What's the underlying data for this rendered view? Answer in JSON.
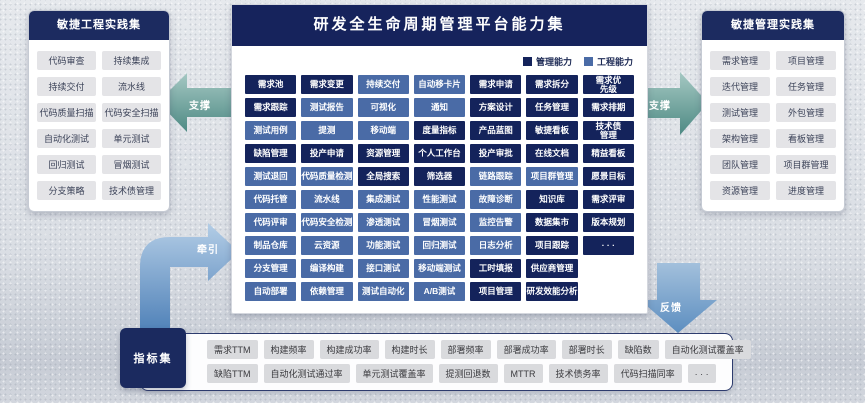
{
  "center": {
    "title": "研发全生命周期管理平台能力集",
    "legend": [
      {
        "label": "管理能力",
        "color": "#14235b"
      },
      {
        "label": "工程能力",
        "color": "#4a6ba6"
      }
    ],
    "rows": [
      [
        {
          "t": "需求池",
          "k": "m"
        },
        {
          "t": "需求变更",
          "k": "m"
        },
        {
          "t": "持续交付",
          "k": "e"
        },
        {
          "t": "自动移卡片",
          "k": "e"
        },
        {
          "t": "需求申请",
          "k": "m"
        },
        {
          "t": "需求拆分",
          "k": "m"
        },
        {
          "t": "需求优先级",
          "k": "m",
          "wrap": true
        }
      ],
      [
        {
          "t": "需求跟踪",
          "k": "m"
        },
        {
          "t": "测试报告",
          "k": "e"
        },
        {
          "t": "可视化",
          "k": "e"
        },
        {
          "t": "通知",
          "k": "e"
        },
        {
          "t": "方案设计",
          "k": "m"
        },
        {
          "t": "任务管理",
          "k": "m"
        },
        {
          "t": "需求排期",
          "k": "m"
        }
      ],
      [
        {
          "t": "测试用例",
          "k": "e"
        },
        {
          "t": "提测",
          "k": "e"
        },
        {
          "t": "移动端",
          "k": "e"
        },
        {
          "t": "度量指标",
          "k": "m"
        },
        {
          "t": "产品蓝图",
          "k": "m"
        },
        {
          "t": "敏捷看板",
          "k": "m"
        },
        {
          "t": "技术债管理",
          "k": "m",
          "wrap": true
        }
      ],
      [
        {
          "t": "缺陷管理",
          "k": "m"
        },
        {
          "t": "投产申请",
          "k": "m"
        },
        {
          "t": "资源管理",
          "k": "m"
        },
        {
          "t": "个人工作台",
          "k": "m"
        },
        {
          "t": "投产审批",
          "k": "m"
        },
        {
          "t": "在线文档",
          "k": "m"
        },
        {
          "t": "精益看板",
          "k": "m"
        }
      ],
      [
        {
          "t": "测试退回",
          "k": "e"
        },
        {
          "t": "代码质量检测",
          "k": "e"
        },
        {
          "t": "全局搜索",
          "k": "m"
        },
        {
          "t": "筛选器",
          "k": "m"
        },
        {
          "t": "链路跟踪",
          "k": "e"
        },
        {
          "t": "项目群管理",
          "k": "e"
        },
        {
          "t": "愿景目标",
          "k": "m"
        }
      ],
      [
        {
          "t": "代码托管",
          "k": "e"
        },
        {
          "t": "流水线",
          "k": "e"
        },
        {
          "t": "集成测试",
          "k": "e"
        },
        {
          "t": "性能测试",
          "k": "e"
        },
        {
          "t": "故障诊断",
          "k": "e"
        },
        {
          "t": "知识库",
          "k": "m"
        },
        {
          "t": "需求评审",
          "k": "m"
        }
      ],
      [
        {
          "t": "代码评审",
          "k": "e"
        },
        {
          "t": "代码安全检测",
          "k": "e"
        },
        {
          "t": "渗透测试",
          "k": "e"
        },
        {
          "t": "冒烟测试",
          "k": "e"
        },
        {
          "t": "监控告警",
          "k": "e"
        },
        {
          "t": "数据集市",
          "k": "m"
        },
        {
          "t": "版本规划",
          "k": "m"
        }
      ],
      [
        {
          "t": "制品仓库",
          "k": "e"
        },
        {
          "t": "云资源",
          "k": "e"
        },
        {
          "t": "功能测试",
          "k": "e"
        },
        {
          "t": "回归测试",
          "k": "e"
        },
        {
          "t": "日志分析",
          "k": "e"
        },
        {
          "t": "项目跟踪",
          "k": "m"
        },
        {
          "t": "· · ·",
          "k": "m"
        }
      ],
      [
        {
          "t": "分支管理",
          "k": "e"
        },
        {
          "t": "编译构建",
          "k": "e"
        },
        {
          "t": "接口测试",
          "k": "e"
        },
        {
          "t": "移动端测试",
          "k": "e"
        },
        {
          "t": "工时填报",
          "k": "m"
        },
        {
          "t": "供应商管理",
          "k": "m"
        }
      ],
      [
        {
          "t": "自动部署",
          "k": "e"
        },
        {
          "t": "依赖管理",
          "k": "e"
        },
        {
          "t": "测试自动化",
          "k": "e"
        },
        {
          "t": "A/B测试",
          "k": "e"
        },
        {
          "t": "项目管理",
          "k": "m"
        },
        {
          "t": "研发效能分析",
          "k": "m"
        }
      ]
    ]
  },
  "left_panel": {
    "title": "敏捷工程实践集",
    "items": [
      "代码审查",
      "持续集成",
      "持续交付",
      "流水线",
      "代码质量扫描",
      "代码安全扫描",
      "自动化测试",
      "单元测试",
      "回归测试",
      "冒烟测试",
      "分支策略",
      "技术债管理"
    ]
  },
  "right_panel": {
    "title": "敏捷管理实践集",
    "items": [
      "需求管理",
      "项目管理",
      "迭代管理",
      "任务管理",
      "测试管理",
      "外包管理",
      "架构管理",
      "看板管理",
      "团队管理",
      "项目群管理",
      "资源管理",
      "进度管理"
    ]
  },
  "metrics": {
    "title": "指标集",
    "row1": [
      "需求TTM",
      "构建频率",
      "构建成功率",
      "构建时长",
      "部署频率",
      "部署成功率",
      "部署时长",
      "缺陷数",
      "自动化测试覆盖率"
    ],
    "row2": [
      "缺陷TTM",
      "自动化测试通过率",
      "单元测试覆盖率",
      "提测回退数",
      "MTTR",
      "技术债务率",
      "代码扫描同率",
      "· · ·"
    ]
  },
  "arrows": {
    "support_left": "支撑",
    "support_right": "支撑",
    "pull": "牵引",
    "feedback": "反馈"
  },
  "colors": {
    "management": "#14235b",
    "engineering": "#4a6ba6",
    "teal_arrow": "#568e88",
    "blue_arrow": "#5f8fc0"
  }
}
